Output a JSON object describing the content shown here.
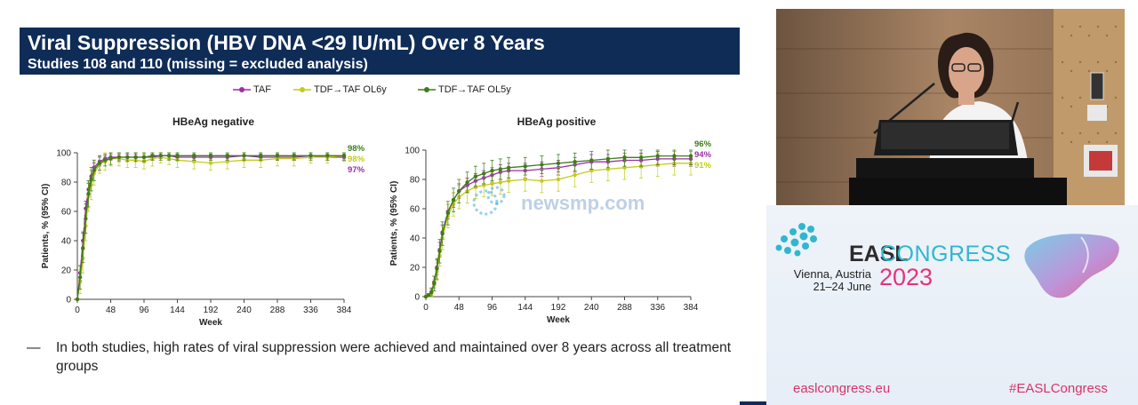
{
  "slide": {
    "title": "Viral Suppression (HBV DNA <29 IU/mL) Over 8 Years",
    "subtitle": "Studies 108 and 110 (missing = excluded analysis)",
    "bullet_dash": "—",
    "bullet": "In both studies, high rates of viral suppression were achieved and maintained over 8 years across all treatment groups"
  },
  "legend": [
    {
      "label": "TAF",
      "color": "#9b2fa6"
    },
    {
      "label": "TDF→TAF OL6y",
      "color": "#c3cc1a"
    },
    {
      "label": "TDF→TAF OL5y",
      "color": "#3e7d1c"
    }
  ],
  "chart_data": [
    {
      "type": "line",
      "title": "HBeAg negative",
      "xlabel": "Week",
      "ylabel": "Patients, % (95% CI)",
      "xlim": [
        0,
        384
      ],
      "ylim": [
        0,
        100
      ],
      "xticks": [
        "0",
        "48",
        "96",
        "144",
        "192",
        "240",
        "288",
        "336",
        "384"
      ],
      "yticks": [
        "0",
        "20",
        "40",
        "60",
        "80",
        "100"
      ],
      "grid": false,
      "end_labels": [
        "98%",
        "98%",
        "97%"
      ],
      "series": [
        {
          "name": "TAF",
          "color": "#9b2fa6",
          "x": [
            0,
            4,
            8,
            12,
            16,
            20,
            24,
            32,
            40,
            48,
            60,
            72,
            84,
            96,
            108,
            120,
            132,
            144,
            168,
            192,
            216,
            240,
            264,
            288,
            312,
            336,
            360,
            384
          ],
          "y": [
            0,
            18,
            40,
            62,
            75,
            84,
            90,
            94,
            96,
            97,
            97,
            97,
            97,
            97,
            97,
            98,
            98,
            97,
            97,
            97,
            97,
            98,
            97,
            97,
            97,
            98,
            97,
            97
          ],
          "ci": [
            0,
            5,
            6,
            5,
            4,
            4,
            3,
            3,
            2,
            2,
            2,
            2,
            2,
            2,
            2,
            2,
            2,
            2,
            2,
            2,
            2,
            2,
            2,
            2,
            2,
            2,
            2,
            2
          ]
        },
        {
          "name": "TDF→TAF OL6y",
          "color": "#c3cc1a",
          "x": [
            0,
            4,
            8,
            12,
            16,
            20,
            24,
            32,
            40,
            48,
            60,
            72,
            84,
            96,
            108,
            120,
            132,
            144,
            168,
            192,
            216,
            240,
            264,
            288,
            312,
            336,
            360,
            384
          ],
          "y": [
            0,
            12,
            28,
            50,
            70,
            78,
            86,
            92,
            94,
            96,
            96,
            95,
            95,
            94,
            96,
            97,
            96,
            95,
            94,
            93,
            94,
            95,
            95,
            96,
            96,
            97,
            97,
            98
          ],
          "ci": [
            0,
            8,
            10,
            10,
            10,
            10,
            8,
            6,
            6,
            5,
            5,
            5,
            5,
            5,
            5,
            4,
            4,
            5,
            5,
            5,
            5,
            5,
            5,
            5,
            5,
            4,
            4,
            4
          ]
        },
        {
          "name": "TDF→TAF OL5y",
          "color": "#3e7d1c",
          "x": [
            0,
            4,
            8,
            12,
            16,
            20,
            24,
            32,
            40,
            48,
            60,
            72,
            84,
            96,
            108,
            120,
            132,
            144,
            168,
            192,
            216,
            240,
            264,
            288,
            312,
            336,
            360,
            384
          ],
          "y": [
            0,
            15,
            35,
            55,
            72,
            82,
            88,
            93,
            95,
            96,
            97,
            97,
            97,
            97,
            98,
            98,
            98,
            98,
            98,
            98,
            98,
            98,
            98,
            98,
            98,
            98,
            98,
            98
          ],
          "ci": [
            0,
            8,
            10,
            10,
            9,
            8,
            7,
            5,
            4,
            4,
            3,
            3,
            3,
            3,
            3,
            3,
            3,
            3,
            3,
            3,
            3,
            3,
            3,
            3,
            3,
            3,
            3,
            3
          ]
        }
      ]
    },
    {
      "type": "line",
      "title": "HBeAg positive",
      "xlabel": "Week",
      "ylabel": "Patients, % (95% CI)",
      "xlim": [
        0,
        384
      ],
      "ylim": [
        0,
        100
      ],
      "xticks": [
        "0",
        "48",
        "96",
        "144",
        "192",
        "240",
        "288",
        "336",
        "384"
      ],
      "yticks": [
        "0",
        "20",
        "40",
        "60",
        "80",
        "100"
      ],
      "grid": false,
      "end_labels": [
        "96%",
        "94%",
        "91%"
      ],
      "series": [
        {
          "name": "TAF",
          "color": "#9b2fa6",
          "x": [
            0,
            4,
            8,
            12,
            16,
            20,
            24,
            32,
            40,
            48,
            60,
            72,
            84,
            96,
            108,
            120,
            144,
            168,
            192,
            216,
            240,
            264,
            288,
            312,
            336,
            360,
            384
          ],
          "y": [
            0,
            1,
            3,
            10,
            20,
            32,
            44,
            58,
            66,
            72,
            76,
            79,
            81,
            83,
            85,
            86,
            86,
            87,
            88,
            90,
            92,
            92,
            93,
            93,
            94,
            94,
            94
          ],
          "ci": [
            0,
            1,
            2,
            4,
            5,
            5,
            5,
            5,
            5,
            5,
            5,
            5,
            5,
            5,
            5,
            5,
            5,
            5,
            5,
            5,
            5,
            5,
            5,
            5,
            5,
            5,
            5
          ]
        },
        {
          "name": "TDF→TAF OL6y",
          "color": "#c3cc1a",
          "x": [
            0,
            4,
            8,
            12,
            16,
            20,
            24,
            32,
            40,
            48,
            60,
            72,
            84,
            96,
            108,
            120,
            144,
            168,
            192,
            216,
            240,
            264,
            288,
            312,
            336,
            360,
            384
          ],
          "y": [
            0,
            1,
            2,
            8,
            17,
            28,
            40,
            55,
            63,
            68,
            72,
            75,
            76,
            77,
            78,
            79,
            80,
            79,
            80,
            83,
            86,
            87,
            88,
            89,
            90,
            91,
            91
          ],
          "ci": [
            0,
            1,
            2,
            4,
            6,
            7,
            8,
            8,
            8,
            8,
            8,
            8,
            8,
            8,
            8,
            8,
            8,
            8,
            8,
            8,
            8,
            8,
            8,
            8,
            8,
            8,
            8
          ]
        },
        {
          "name": "TDF→TAF OL5y",
          "color": "#3e7d1c",
          "x": [
            0,
            4,
            8,
            12,
            16,
            20,
            24,
            32,
            40,
            48,
            60,
            72,
            84,
            96,
            108,
            120,
            144,
            168,
            192,
            216,
            240,
            264,
            288,
            312,
            336,
            360,
            384
          ],
          "y": [
            0,
            1,
            3,
            9,
            19,
            31,
            43,
            57,
            66,
            72,
            78,
            82,
            84,
            86,
            87,
            88,
            89,
            90,
            91,
            92,
            93,
            94,
            95,
            95,
            96,
            96,
            96
          ],
          "ci": [
            0,
            1,
            3,
            5,
            7,
            8,
            8,
            8,
            8,
            8,
            7,
            7,
            7,
            7,
            7,
            7,
            6,
            6,
            6,
            6,
            6,
            6,
            6,
            6,
            6,
            6,
            6
          ]
        }
      ]
    }
  ],
  "watermark": "newsmp.com",
  "congress": {
    "name": "EASL",
    "word": "CONGRESS",
    "city": "Vienna, Austria",
    "dates": "21–24 June",
    "year": "2023",
    "website": "easlcongress.eu",
    "hashtag": "#EASLCongress",
    "colors": {
      "teal": "#2fb7cf",
      "pink": "#e5337a"
    }
  }
}
